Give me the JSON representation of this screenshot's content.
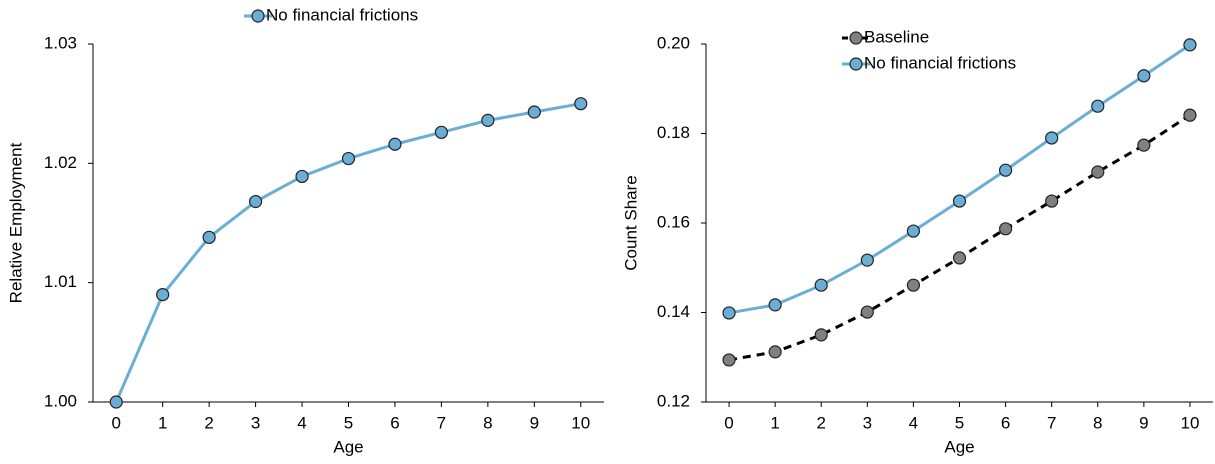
{
  "chart_data": [
    {
      "type": "line",
      "xlabel": "Age",
      "ylabel": "Relative Employment",
      "x": [
        0,
        1,
        2,
        3,
        4,
        5,
        6,
        7,
        8,
        9,
        10
      ],
      "xlim": [
        -0.5,
        10.5
      ],
      "xticks": [
        0,
        1,
        2,
        3,
        4,
        5,
        6,
        7,
        8,
        9,
        10
      ],
      "ylim": [
        1.0,
        1.03
      ],
      "yticks": [
        {
          "value": 1.0,
          "label": "1.00"
        },
        1.01,
        1.02,
        1.03
      ],
      "legend_position": "top center",
      "grid": false,
      "series": [
        {
          "name": "No financial frictions",
          "color": "#6aaed6",
          "marker_color": "#6aaed6",
          "linestyle": "solid",
          "values": [
            1.0,
            1.009,
            1.0138,
            1.0168,
            1.0189,
            1.0204,
            1.0216,
            1.0226,
            1.0236,
            1.0243,
            1.025
          ]
        }
      ]
    },
    {
      "type": "line",
      "xlabel": "Age",
      "ylabel": "Count Share",
      "x": [
        0,
        1,
        2,
        3,
        4,
        5,
        6,
        7,
        8,
        9,
        10
      ],
      "xlim": [
        -0.5,
        10.5
      ],
      "xticks": [
        0,
        1,
        2,
        3,
        4,
        5,
        6,
        7,
        8,
        9,
        10
      ],
      "ylim": [
        0.12,
        0.2
      ],
      "yticks": [
        0.12,
        0.14,
        0.16,
        0.18,
        {
          "value": 0.2,
          "label": "0.20"
        }
      ],
      "legend_position": "upper left",
      "grid": false,
      "series": [
        {
          "name": "Baseline",
          "color": "#000000",
          "marker_color": "#808080",
          "linestyle": "dashed",
          "values": [
            0.1294,
            0.1312,
            0.135,
            0.1401,
            0.1461,
            0.1522,
            0.1587,
            0.1649,
            0.1714,
            0.1774,
            0.1841
          ]
        },
        {
          "name": "No financial frictions",
          "color": "#6aaed6",
          "marker_color": "#6aaed6",
          "linestyle": "solid",
          "values": [
            0.1399,
            0.1417,
            0.1461,
            0.1517,
            0.1582,
            0.1649,
            0.1718,
            0.179,
            0.1861,
            0.1929,
            0.1998
          ]
        }
      ]
    }
  ]
}
